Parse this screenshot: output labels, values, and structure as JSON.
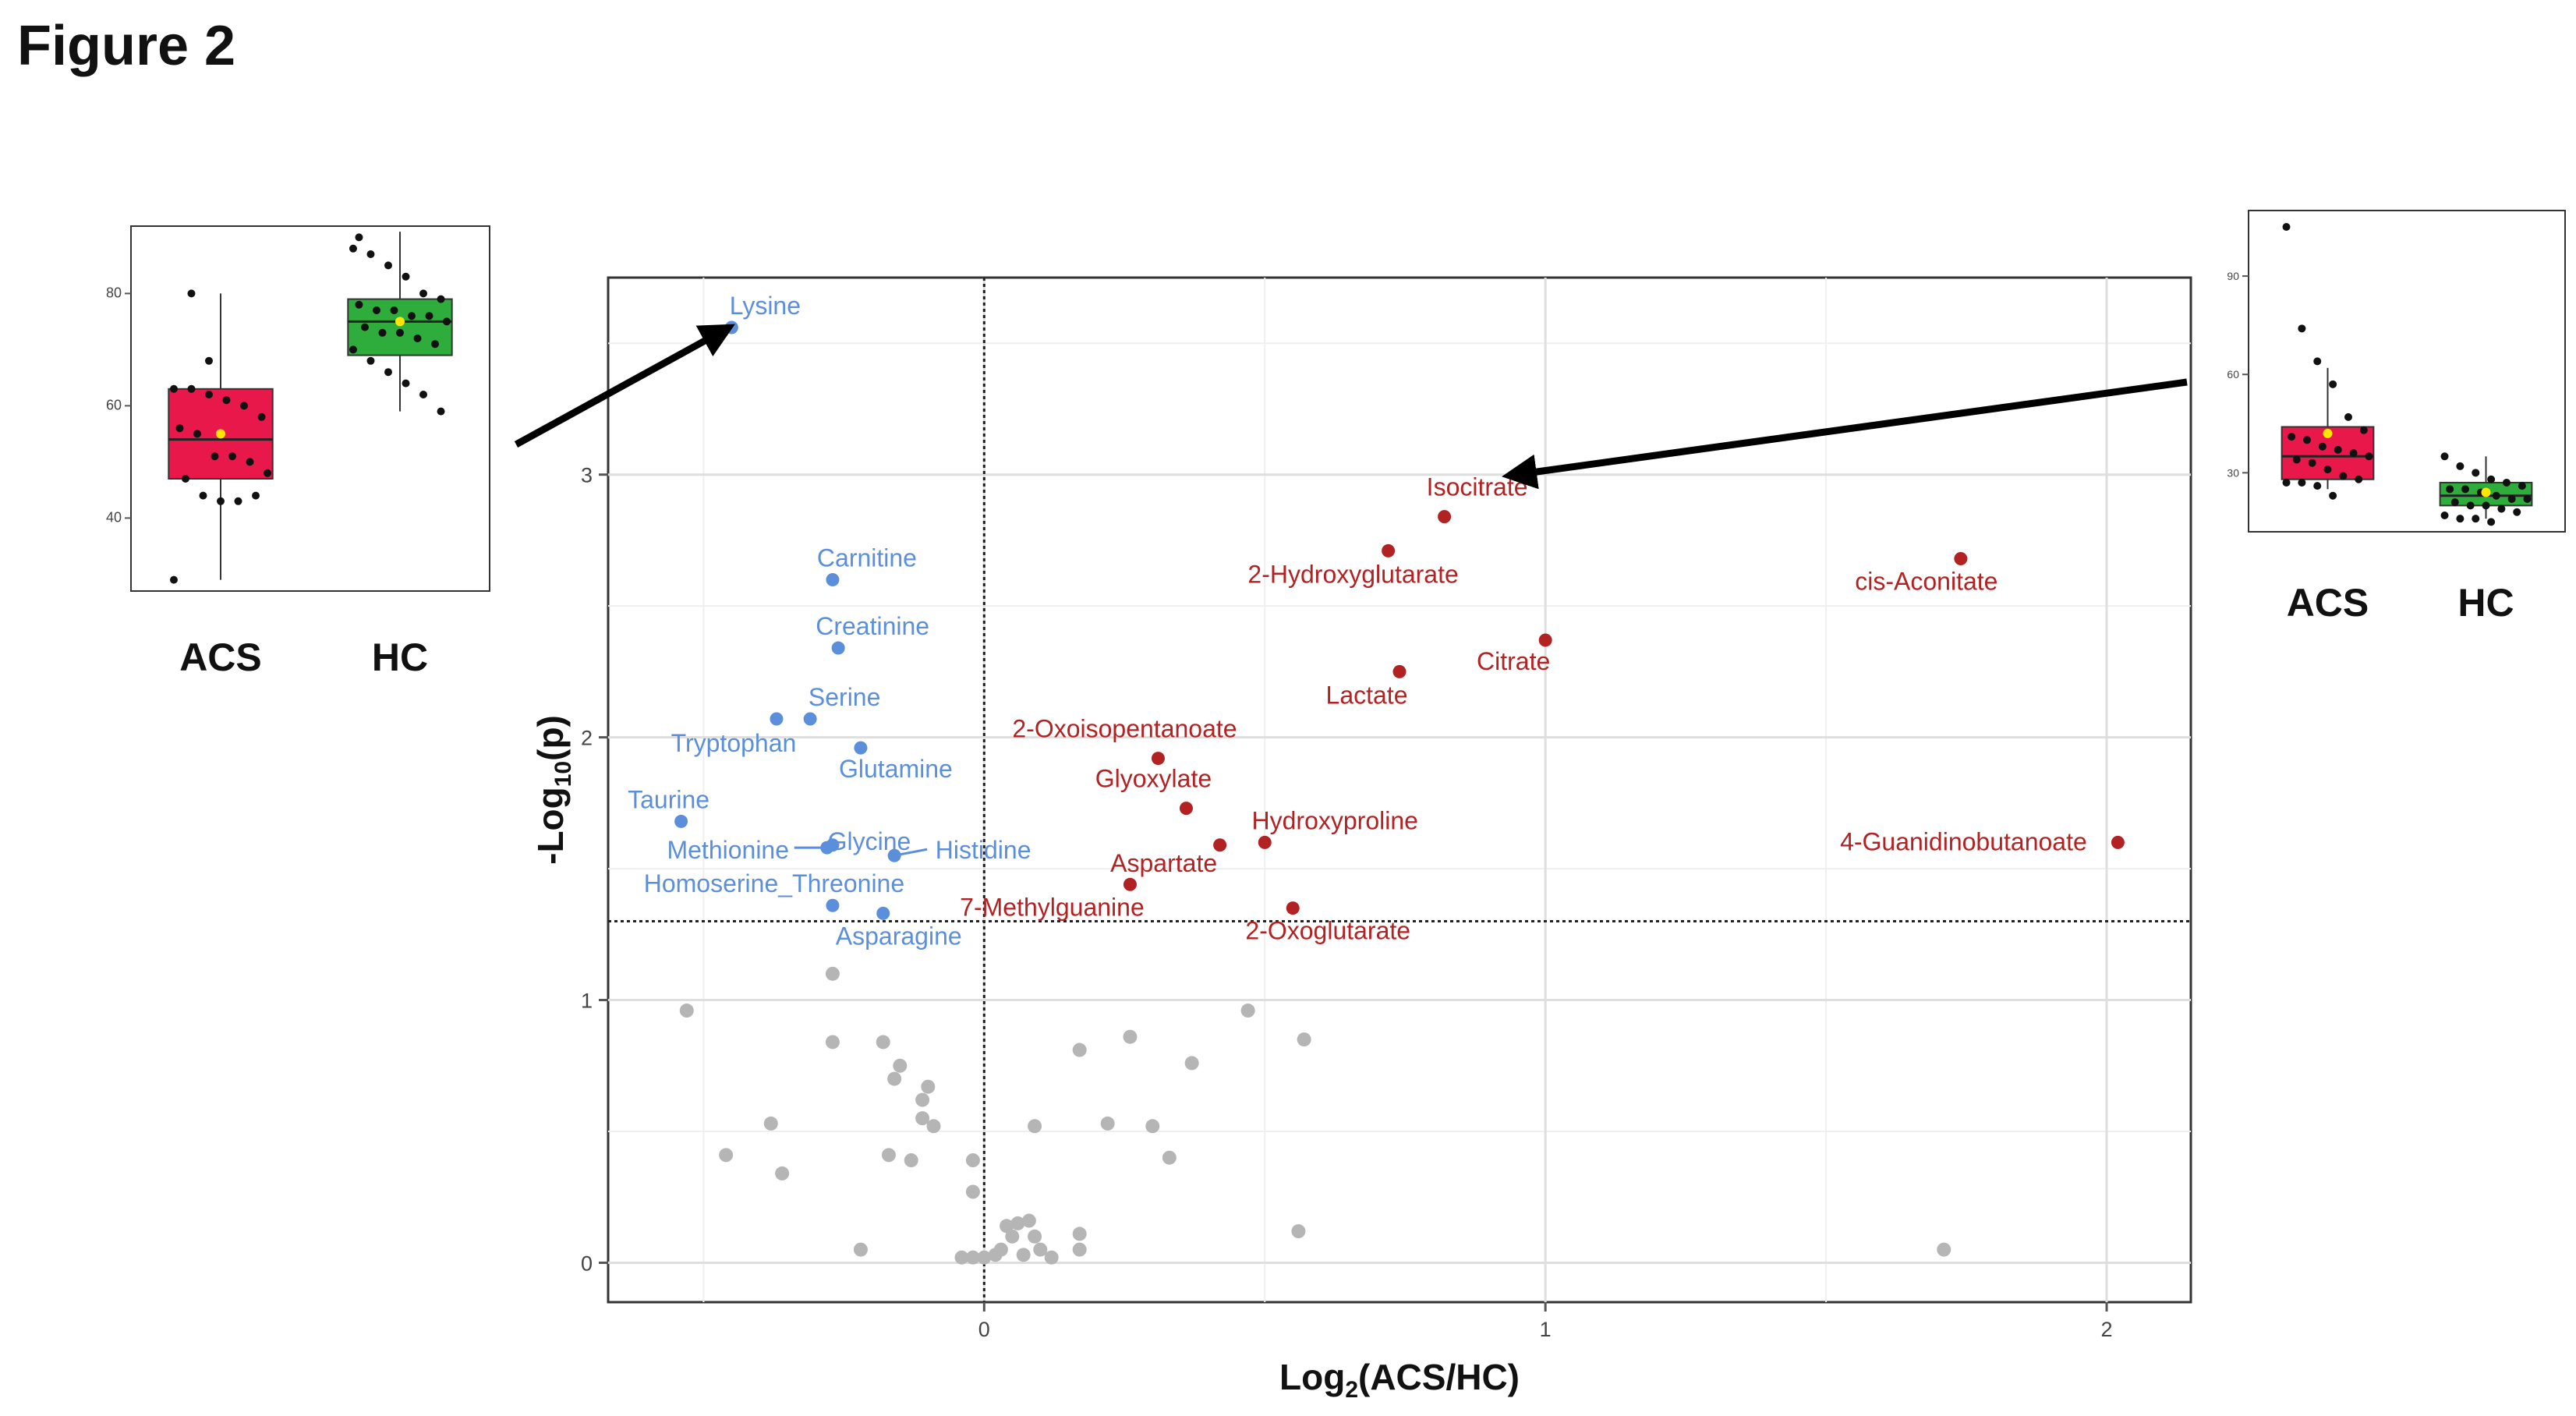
{
  "figure_title": "Figure 2",
  "colors": {
    "up": "#b22222",
    "down": "#5b8fdb",
    "ns": "#b5b5b5",
    "acs_box": "#e8184a",
    "hc_box": "#2fad3c",
    "mean_marker": "#ffe600"
  },
  "chart_data": [
    {
      "type": "scatter",
      "title": "",
      "xlabel": "Log2(ACS/HC)",
      "ylabel": "-Log10(p)",
      "xlim": [
        -0.67,
        2.15
      ],
      "ylim": [
        -0.15,
        3.75
      ],
      "xticks": [
        0,
        1,
        2
      ],
      "yticks": [
        0,
        1,
        2,
        3
      ],
      "threshold_y": 1.3,
      "threshold_x": 0,
      "grid": true,
      "legend": "none",
      "series": [
        {
          "group": "up",
          "points": [
            {
              "x": 0.82,
              "y": 2.84,
              "label": "Isocitrate"
            },
            {
              "x": 0.72,
              "y": 2.71,
              "label": "2-Hydroxyglutarate"
            },
            {
              "x": 1.74,
              "y": 2.68,
              "label": "cis-Aconitate"
            },
            {
              "x": 1.0,
              "y": 2.37,
              "label": "Citrate"
            },
            {
              "x": 0.74,
              "y": 2.25,
              "label": "Lactate"
            },
            {
              "x": 0.31,
              "y": 1.92,
              "label": "2-Oxoisopentanoate"
            },
            {
              "x": 0.36,
              "y": 1.73,
              "label": "Glyoxylate"
            },
            {
              "x": 0.5,
              "y": 1.6,
              "label": "Hydroxyproline"
            },
            {
              "x": 2.02,
              "y": 1.6,
              "label": "4-Guanidinobutanoate"
            },
            {
              "x": 0.42,
              "y": 1.59,
              "label": "Aspartate"
            },
            {
              "x": 0.26,
              "y": 1.44,
              "label": "7-Methylguanine"
            },
            {
              "x": 0.55,
              "y": 1.35,
              "label": "2-Oxoglutarate"
            }
          ]
        },
        {
          "group": "down",
          "points": [
            {
              "x": -0.45,
              "y": 3.56,
              "label": "Lysine"
            },
            {
              "x": -0.27,
              "y": 2.6,
              "label": "Carnitine"
            },
            {
              "x": -0.26,
              "y": 2.34,
              "label": "Creatinine"
            },
            {
              "x": -0.31,
              "y": 2.07,
              "label": "Serine"
            },
            {
              "x": -0.37,
              "y": 2.07,
              "label": "Tryptophan"
            },
            {
              "x": -0.22,
              "y": 1.96,
              "label": "Glutamine"
            },
            {
              "x": -0.54,
              "y": 1.68,
              "label": "Taurine"
            },
            {
              "x": -0.27,
              "y": 1.59,
              "label": "Glycine"
            },
            {
              "x": -0.28,
              "y": 1.58,
              "label": "Methionine"
            },
            {
              "x": -0.16,
              "y": 1.55,
              "label": "Histidine"
            },
            {
              "x": -0.27,
              "y": 1.36,
              "label": "Homoserine_Threonine"
            },
            {
              "x": -0.18,
              "y": 1.33,
              "label": "Asparagine"
            }
          ]
        },
        {
          "group": "ns",
          "points": [
            {
              "x": -0.53,
              "y": 0.96
            },
            {
              "x": -0.27,
              "y": 1.1
            },
            {
              "x": -0.27,
              "y": 0.84
            },
            {
              "x": -0.18,
              "y": 0.84
            },
            {
              "x": -0.15,
              "y": 0.75
            },
            {
              "x": -0.16,
              "y": 0.7
            },
            {
              "x": -0.1,
              "y": 0.67
            },
            {
              "x": -0.11,
              "y": 0.62
            },
            {
              "x": -0.11,
              "y": 0.55
            },
            {
              "x": -0.09,
              "y": 0.52
            },
            {
              "x": -0.38,
              "y": 0.53
            },
            {
              "x": -0.46,
              "y": 0.41
            },
            {
              "x": -0.36,
              "y": 0.34
            },
            {
              "x": -0.17,
              "y": 0.41
            },
            {
              "x": -0.13,
              "y": 0.39
            },
            {
              "x": -0.02,
              "y": 0.39
            },
            {
              "x": -0.02,
              "y": 0.27
            },
            {
              "x": -0.22,
              "y": 0.05
            },
            {
              "x": -0.04,
              "y": 0.02
            },
            {
              "x": -0.02,
              "y": 0.02
            },
            {
              "x": 0.0,
              "y": 0.02
            },
            {
              "x": 0.02,
              "y": 0.03
            },
            {
              "x": 0.03,
              "y": 0.05
            },
            {
              "x": 0.05,
              "y": 0.1
            },
            {
              "x": 0.08,
              "y": 0.16
            },
            {
              "x": 0.06,
              "y": 0.15
            },
            {
              "x": 0.04,
              "y": 0.14
            },
            {
              "x": 0.09,
              "y": 0.1
            },
            {
              "x": 0.1,
              "y": 0.05
            },
            {
              "x": 0.12,
              "y": 0.02
            },
            {
              "x": 0.17,
              "y": 0.05
            },
            {
              "x": 0.17,
              "y": 0.11
            },
            {
              "x": 0.07,
              "y": 0.03
            },
            {
              "x": 0.09,
              "y": 0.52
            },
            {
              "x": 0.17,
              "y": 0.81
            },
            {
              "x": 0.26,
              "y": 0.86
            },
            {
              "x": 0.22,
              "y": 0.53
            },
            {
              "x": 0.3,
              "y": 0.52
            },
            {
              "x": 0.33,
              "y": 0.4
            },
            {
              "x": 0.37,
              "y": 0.76
            },
            {
              "x": 0.47,
              "y": 0.96
            },
            {
              "x": 0.57,
              "y": 0.85
            },
            {
              "x": 0.56,
              "y": 0.12
            },
            {
              "x": 1.71,
              "y": 0.05
            }
          ]
        }
      ]
    },
    {
      "type": "box",
      "title": "",
      "categories": [
        "ACS",
        "HC"
      ],
      "yticks": [
        40,
        60,
        80
      ],
      "ylim": [
        27,
        92
      ],
      "boxes": [
        {
          "name": "ACS",
          "whisker_low": 29,
          "q1": 47,
          "median": 54,
          "q3": 63,
          "whisker_high": 80,
          "mean": 55
        },
        {
          "name": "HC",
          "whisker_low": 59,
          "q1": 69,
          "median": 75,
          "q3": 79,
          "whisker_high": 91,
          "mean": 75
        }
      ],
      "points": {
        "ACS": [
          63,
          63,
          62,
          61,
          60,
          58,
          56,
          55,
          51,
          51,
          50,
          48,
          47,
          44,
          43,
          43,
          44,
          29,
          80,
          68
        ],
        "HC": [
          88,
          87,
          85,
          83,
          80,
          79,
          78,
          77,
          77,
          76,
          76,
          75,
          74,
          73,
          73,
          72,
          71,
          70,
          68,
          66,
          64,
          62,
          59,
          90
        ]
      }
    },
    {
      "type": "box",
      "title": "",
      "categories": [
        "ACS",
        "HC"
      ],
      "yticks": [
        30,
        60,
        90
      ],
      "ylim": [
        12,
        110
      ],
      "boxes": [
        {
          "name": "ACS",
          "whisker_low": 25,
          "q1": 28,
          "median": 35,
          "q3": 44,
          "whisker_high": 62,
          "mean": 42
        },
        {
          "name": "HC",
          "whisker_low": 16,
          "q1": 20,
          "median": 23,
          "q3": 27,
          "whisker_high": 35,
          "mean": 24
        }
      ],
      "points": {
        "ACS": [
          105,
          74,
          64,
          57,
          47,
          43,
          41,
          40,
          38,
          37,
          36,
          35,
          34,
          33,
          31,
          29,
          28,
          27,
          27,
          26,
          23
        ],
        "HC": [
          35,
          32,
          30,
          28,
          27,
          26,
          25,
          25,
          24,
          23,
          22,
          22,
          21,
          20,
          20,
          19,
          18,
          17,
          16,
          16,
          15
        ]
      }
    }
  ]
}
